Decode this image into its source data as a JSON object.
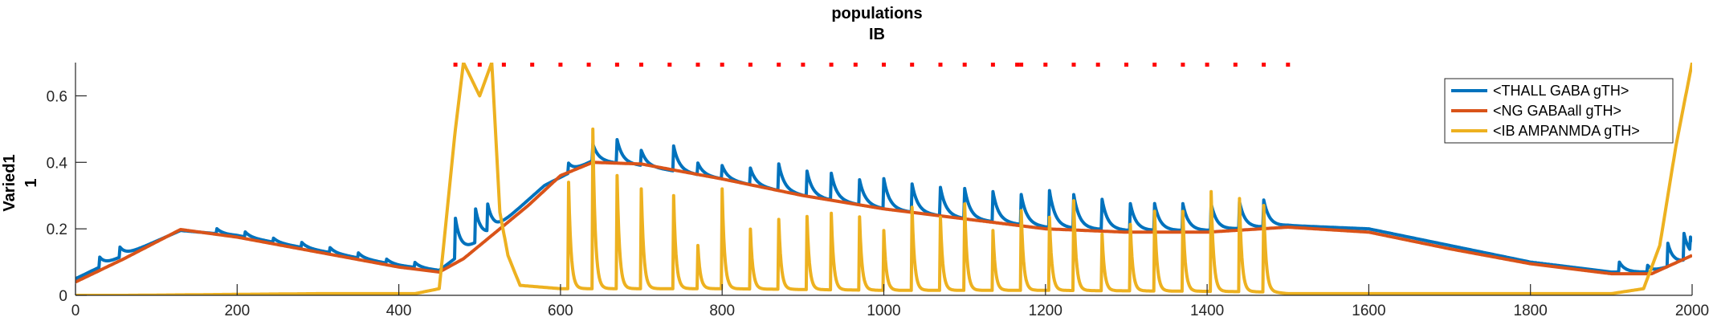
{
  "figure": {
    "title_line1": "populations",
    "title_line2": "IB"
  },
  "chart_data": {
    "type": "line",
    "title": "populations\nIB",
    "xlabel": "",
    "ylabel": "Varied1\n1",
    "ylabel_line1": "Varied1",
    "ylabel_line2": "1",
    "xlim": [
      0,
      2000
    ],
    "ylim": [
      0,
      0.7
    ],
    "x_ticks": [
      0,
      200,
      400,
      600,
      800,
      1000,
      1200,
      1400,
      1600,
      1800,
      2000
    ],
    "y_ticks": [
      0,
      0.2,
      0.4,
      0.6
    ],
    "x_tick_labels": [
      "0",
      "200",
      "400",
      "600",
      "800",
      "1000",
      "1200",
      "1400",
      "1600",
      "1800",
      "2000"
    ],
    "y_tick_labels": [
      "0",
      "0.2",
      "0.4",
      "0.6"
    ],
    "grid": false,
    "legend_position": "top-right",
    "series": [
      {
        "name": "<THALL GABA gTH>",
        "color": "#0072BD",
        "baseline": [
          [
            0,
            0.05
          ],
          [
            60,
            0.12
          ],
          [
            130,
            0.195
          ],
          [
            200,
            0.18
          ],
          [
            300,
            0.135
          ],
          [
            400,
            0.09
          ],
          [
            450,
            0.075
          ],
          [
            480,
            0.13
          ],
          [
            520,
            0.2
          ],
          [
            580,
            0.33
          ],
          [
            640,
            0.405
          ],
          [
            700,
            0.39
          ],
          [
            800,
            0.35
          ],
          [
            900,
            0.3
          ],
          [
            1000,
            0.26
          ],
          [
            1100,
            0.23
          ],
          [
            1200,
            0.205
          ],
          [
            1300,
            0.195
          ],
          [
            1400,
            0.195
          ],
          [
            1500,
            0.21
          ],
          [
            1600,
            0.2
          ],
          [
            1700,
            0.15
          ],
          [
            1800,
            0.1
          ],
          [
            1900,
            0.07
          ],
          [
            1950,
            0.07
          ],
          [
            2000,
            0.11
          ]
        ],
        "spikes": [
          [
            30,
            0.03
          ],
          [
            55,
            0.03
          ],
          [
            175,
            0.015
          ],
          [
            210,
            0.015
          ],
          [
            245,
            0.012
          ],
          [
            280,
            0.015
          ],
          [
            315,
            0.015
          ],
          [
            350,
            0.015
          ],
          [
            385,
            0.012
          ],
          [
            420,
            0.015
          ],
          [
            470,
            0.12
          ],
          [
            495,
            0.1
          ],
          [
            510,
            0.08
          ],
          [
            610,
            0.03
          ],
          [
            640,
            0.05
          ],
          [
            670,
            0.07
          ],
          [
            700,
            0.045
          ],
          [
            740,
            0.075
          ],
          [
            770,
            0.035
          ],
          [
            800,
            0.04
          ],
          [
            835,
            0.05
          ],
          [
            870,
            0.08
          ],
          [
            905,
            0.075
          ],
          [
            935,
            0.08
          ],
          [
            970,
            0.075
          ],
          [
            1000,
            0.09
          ],
          [
            1035,
            0.085
          ],
          [
            1070,
            0.085
          ],
          [
            1100,
            0.09
          ],
          [
            1135,
            0.09
          ],
          [
            1170,
            0.09
          ],
          [
            1205,
            0.11
          ],
          [
            1235,
            0.1
          ],
          [
            1270,
            0.09
          ],
          [
            1305,
            0.08
          ],
          [
            1335,
            0.08
          ],
          [
            1370,
            0.08
          ],
          [
            1405,
            0.08
          ],
          [
            1440,
            0.08
          ],
          [
            1470,
            0.08
          ],
          [
            1910,
            0.03
          ],
          [
            1945,
            0.02
          ],
          [
            1970,
            0.07
          ],
          [
            1990,
            0.08
          ],
          [
            1998,
            0.04
          ]
        ],
        "decay": 7
      },
      {
        "name": "<NG GABAall gTH>",
        "color": "#D95319",
        "baseline": [
          [
            0,
            0.04
          ],
          [
            60,
            0.11
          ],
          [
            130,
            0.198
          ],
          [
            200,
            0.175
          ],
          [
            300,
            0.13
          ],
          [
            400,
            0.085
          ],
          [
            450,
            0.07
          ],
          [
            480,
            0.11
          ],
          [
            520,
            0.19
          ],
          [
            560,
            0.27
          ],
          [
            600,
            0.36
          ],
          [
            640,
            0.4
          ],
          [
            700,
            0.395
          ],
          [
            800,
            0.35
          ],
          [
            900,
            0.3
          ],
          [
            1000,
            0.26
          ],
          [
            1100,
            0.23
          ],
          [
            1200,
            0.2
          ],
          [
            1300,
            0.19
          ],
          [
            1400,
            0.19
          ],
          [
            1500,
            0.205
          ],
          [
            1600,
            0.19
          ],
          [
            1700,
            0.14
          ],
          [
            1800,
            0.095
          ],
          [
            1900,
            0.065
          ],
          [
            1950,
            0.065
          ],
          [
            2000,
            0.12
          ]
        ],
        "spikes": [],
        "decay": 5
      },
      {
        "name": "<IB AMPANMDA gTH>",
        "color": "#EDB120",
        "baseline": [
          [
            0,
            0
          ],
          [
            60,
            0
          ],
          [
            300,
            0.005
          ],
          [
            420,
            0.005
          ],
          [
            450,
            0.02
          ],
          [
            470,
            0.5
          ],
          [
            480,
            0.7
          ],
          [
            500,
            0.6
          ],
          [
            515,
            0.7
          ],
          [
            525,
            0.25
          ],
          [
            535,
            0.12
          ],
          [
            550,
            0.03
          ],
          [
            600,
            0.02
          ],
          [
            800,
            0.02
          ],
          [
            1000,
            0.015
          ],
          [
            1200,
            0.015
          ],
          [
            1400,
            0.012
          ],
          [
            1480,
            0.01
          ],
          [
            1500,
            0.005
          ],
          [
            1700,
            0.005
          ],
          [
            1900,
            0.005
          ],
          [
            1940,
            0.02
          ],
          [
            1960,
            0.15
          ],
          [
            1980,
            0.45
          ],
          [
            2000,
            0.7
          ]
        ],
        "spikes": [
          [
            610,
            0.32
          ],
          [
            640,
            0.48
          ],
          [
            670,
            0.34
          ],
          [
            700,
            0.3
          ],
          [
            740,
            0.28
          ],
          [
            770,
            0.13
          ],
          [
            800,
            0.3
          ],
          [
            835,
            0.18
          ],
          [
            870,
            0.21
          ],
          [
            905,
            0.22
          ],
          [
            935,
            0.23
          ],
          [
            970,
            0.22
          ],
          [
            1000,
            0.18
          ],
          [
            1035,
            0.25
          ],
          [
            1070,
            0.22
          ],
          [
            1100,
            0.26
          ],
          [
            1135,
            0.18
          ],
          [
            1170,
            0.24
          ],
          [
            1205,
            0.22
          ],
          [
            1235,
            0.27
          ],
          [
            1270,
            0.17
          ],
          [
            1305,
            0.2
          ],
          [
            1335,
            0.24
          ],
          [
            1370,
            0.24
          ],
          [
            1405,
            0.3
          ],
          [
            1440,
            0.28
          ],
          [
            1470,
            0.26
          ]
        ],
        "decay": 3
      }
    ],
    "markers": {
      "name": "spike markers",
      "color": "#FF0000",
      "y": 0.695,
      "x": [
        470,
        500,
        530,
        565,
        600,
        635,
        670,
        700,
        735,
        770,
        800,
        835,
        870,
        900,
        935,
        965,
        1000,
        1035,
        1070,
        1100,
        1135,
        1165,
        1170,
        1200,
        1235,
        1265,
        1300,
        1335,
        1370,
        1400,
        1435,
        1470,
        1500
      ]
    }
  }
}
